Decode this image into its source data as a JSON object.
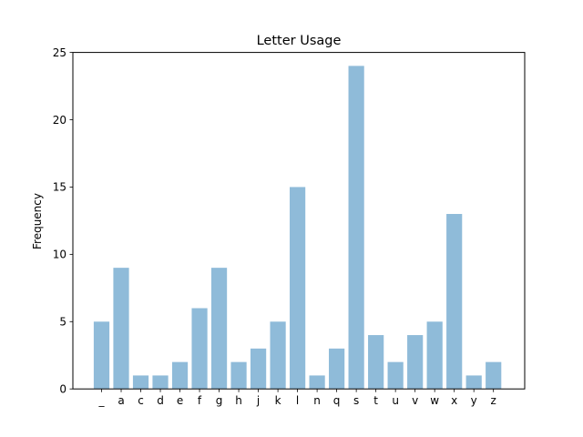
{
  "chart_data": {
    "type": "bar",
    "title": "Letter Usage",
    "xlabel": "",
    "ylabel": "Frequency",
    "ylim": [
      0,
      25
    ],
    "yticks": [
      0,
      5,
      10,
      15,
      20,
      25
    ],
    "categories": [
      "_",
      "a",
      "c",
      "d",
      "e",
      "f",
      "g",
      "h",
      "j",
      "k",
      "l",
      "n",
      "q",
      "s",
      "t",
      "u",
      "v",
      "w",
      "x",
      "y",
      "z"
    ],
    "values": [
      5,
      9,
      1,
      1,
      2,
      6,
      9,
      2,
      3,
      5,
      15,
      1,
      3,
      24,
      4,
      2,
      4,
      5,
      13,
      1,
      2
    ],
    "bar_color": "#8fbbd9",
    "grid": false,
    "legend": "none"
  }
}
